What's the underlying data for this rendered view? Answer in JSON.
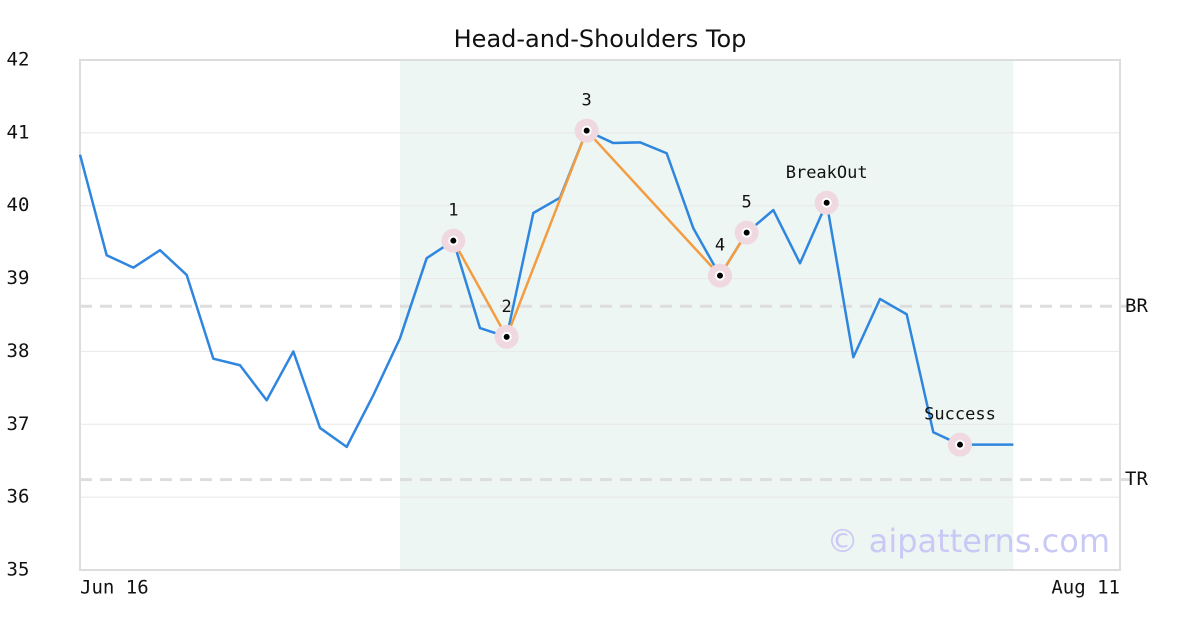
{
  "chart_data": {
    "type": "line",
    "title": "Head-and-Shoulders Top",
    "categories": [
      "Jun 16",
      null,
      null,
      null,
      null,
      null,
      null,
      null,
      null,
      null,
      null,
      null,
      null,
      null,
      null,
      null,
      null,
      null,
      null,
      null,
      null,
      null,
      null,
      null,
      null,
      null,
      null,
      null,
      null,
      null,
      null,
      null,
      null,
      null,
      null,
      null,
      null,
      null,
      null,
      "Aug 11"
    ],
    "series": [
      {
        "color": "#2e86de",
        "values": [
          40.7,
          39.32,
          39.15,
          39.39,
          39.05,
          37.9,
          37.81,
          37.33,
          38.0,
          36.95,
          36.69,
          37.4,
          38.18,
          39.28,
          39.52,
          38.32,
          38.2,
          39.9,
          40.11,
          41.03,
          40.86,
          40.87,
          40.72,
          39.69,
          39.04,
          39.63,
          39.94,
          39.21,
          40.04,
          37.92,
          38.72,
          38.51,
          36.89,
          36.72,
          36.72,
          36.72,
          null,
          null,
          null,
          null
        ]
      }
    ],
    "ylim": [
      35,
      42
    ],
    "yticks": [
      35,
      36,
      37,
      38,
      39,
      40,
      41,
      42
    ],
    "grid": true,
    "highlight": [
      12,
      35
    ],
    "highlight_color": "#eef6f3",
    "pattern_color": "#f39c40",
    "pattern_points": [
      {
        "label": "1",
        "x": 14,
        "value": 39.52
      },
      {
        "label": "2",
        "x": 16,
        "value": 38.2
      },
      {
        "label": "3",
        "x": 19,
        "value": 41.03
      },
      {
        "label": "4",
        "x": 24,
        "value": 39.04
      },
      {
        "label": "5",
        "x": 25,
        "value": 39.63
      }
    ],
    "signals": [
      {
        "label": "BreakOut",
        "x": 28,
        "value": 40.04
      },
      {
        "label": "Success",
        "x": 33,
        "value": 36.72
      }
    ],
    "levels": [
      {
        "label": "BR",
        "value": 38.62
      },
      {
        "label": "TR",
        "value": 36.24
      }
    ],
    "watermark": "© aipatterns.com"
  }
}
